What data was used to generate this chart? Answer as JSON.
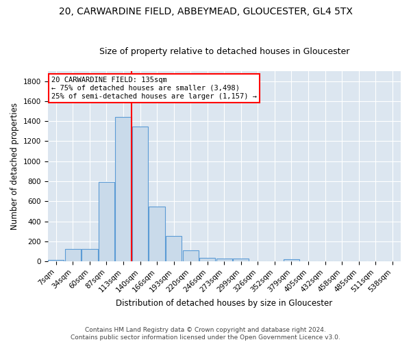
{
  "title1": "20, CARWARDINE FIELD, ABBEYMEAD, GLOUCESTER, GL4 5TX",
  "title2": "Size of property relative to detached houses in Gloucester",
  "xlabel": "Distribution of detached houses by size in Gloucester",
  "ylabel": "Number of detached properties",
  "categories": [
    "7sqm",
    "34sqm",
    "60sqm",
    "87sqm",
    "113sqm",
    "140sqm",
    "166sqm",
    "193sqm",
    "220sqm",
    "246sqm",
    "273sqm",
    "299sqm",
    "326sqm",
    "352sqm",
    "379sqm",
    "405sqm",
    "432sqm",
    "458sqm",
    "485sqm",
    "511sqm",
    "538sqm"
  ],
  "bar_values": [
    15,
    125,
    125,
    790,
    1440,
    1345,
    550,
    250,
    110,
    35,
    30,
    30,
    0,
    0,
    20,
    0,
    0,
    0,
    0,
    0,
    0
  ],
  "bar_color": "#c9daea",
  "bar_edge_color": "#5b9bd5",
  "vline_color": "red",
  "annotation_line1": "20 CARWARDINE FIELD: 135sqm",
  "annotation_line2": "← 75% of detached houses are smaller (3,498)",
  "annotation_line3": "25% of semi-detached houses are larger (1,157) →",
  "annotation_box_color": "white",
  "annotation_box_edge": "red",
  "ylim": [
    0,
    1900
  ],
  "yticks": [
    0,
    200,
    400,
    600,
    800,
    1000,
    1200,
    1400,
    1600,
    1800
  ],
  "footer1": "Contains HM Land Registry data © Crown copyright and database right 2024.",
  "footer2": "Contains public sector information licensed under the Open Government Licence v3.0.",
  "bg_color": "#ffffff",
  "plot_bg_color": "#dce6f0",
  "grid_color": "#ffffff",
  "title1_fontsize": 10,
  "title2_fontsize": 9,
  "xlabel_fontsize": 8.5,
  "ylabel_fontsize": 8.5,
  "tick_fontsize": 7.5,
  "footer_fontsize": 6.5,
  "annotation_fontsize": 7.5
}
